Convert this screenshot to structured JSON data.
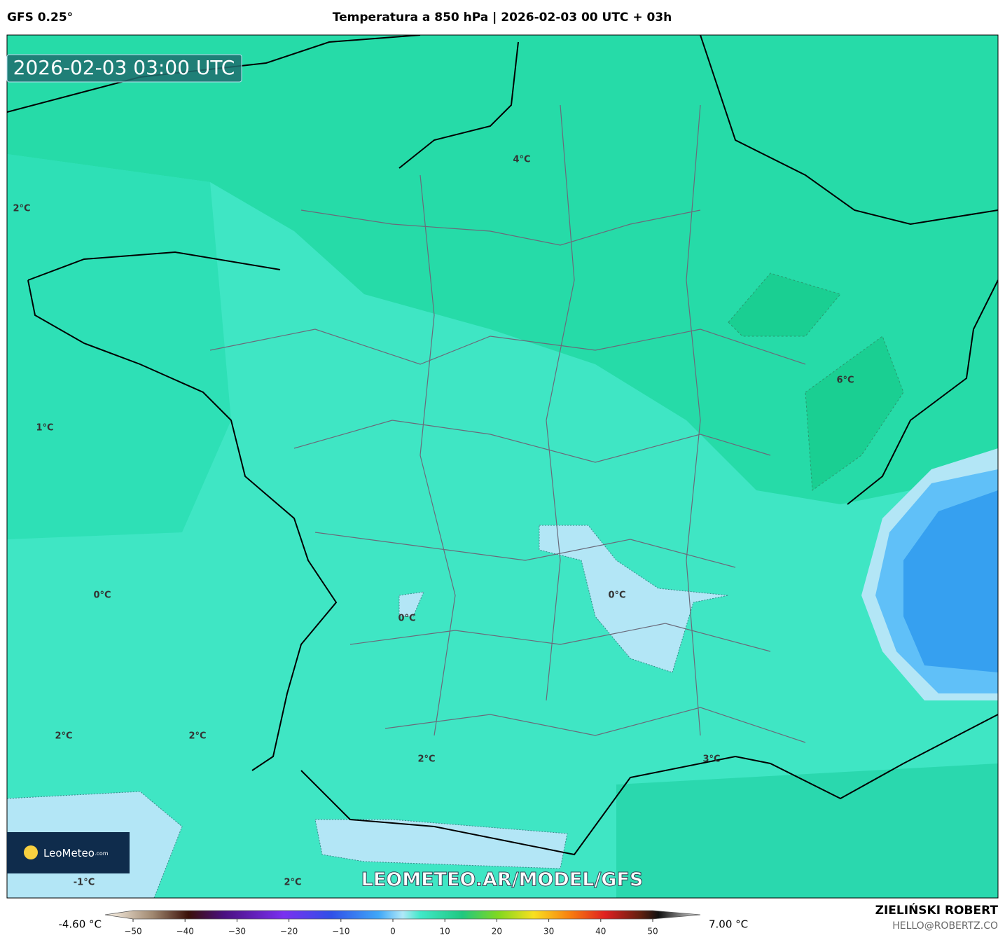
{
  "header": {
    "model": "GFS 0.25°",
    "title": "Temperatura a 850 hPa | 2026-02-03 00 UTC + 03h"
  },
  "timestamp": "2026-02-03 03:00 UTC",
  "map_labels": [
    "4°C",
    "2°C",
    "1°C",
    "6°C",
    "0°C",
    "0°C",
    "0°C",
    "2°C",
    "2°C",
    "2°C",
    "3°C",
    "-1°C",
    "2°C"
  ],
  "logo": {
    "name": "LeoMeteo",
    "suffix": ".com"
  },
  "watermark": "LEOMETEO.AR/MODEL/GFS",
  "colorbar": {
    "min_label": "-4.60 °C",
    "max_label": "7.00 °C",
    "lim": [
      -50,
      50
    ],
    "ticks": [
      {
        "value": -50,
        "label": "−50"
      },
      {
        "value": -40,
        "label": "−40"
      },
      {
        "value": -30,
        "label": "−30"
      },
      {
        "value": -20,
        "label": "−20"
      },
      {
        "value": -10,
        "label": "−10"
      },
      0,
      10,
      20,
      30,
      40,
      50
    ]
  },
  "footer": {
    "author": "ZIELIŃSKI ROBERT",
    "email": "HELLO@ROBERTZ.CO"
  }
}
